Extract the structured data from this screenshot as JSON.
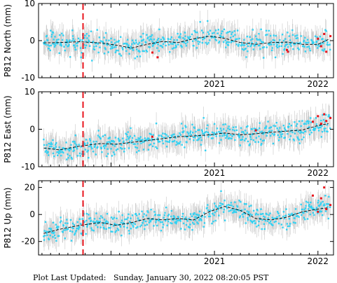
{
  "colors": {
    "data": "#33d1f2",
    "recent": "#e8141c",
    "errorbar": "#c8c8c8",
    "model": "#000000",
    "event": "#e8141c",
    "frame": "#000000"
  },
  "footer": {
    "label": "Plot Last Updated:",
    "timestamp": "Sunday, January 30, 2022 08:20:05 PST"
  },
  "chart_data": [
    {
      "type": "scatter",
      "ylabel": "P812 North (mm)",
      "xlim": [
        2019.3,
        2022.15
      ],
      "ylim": [
        -10,
        10
      ],
      "yticks": [
        -10,
        0,
        10
      ],
      "xticks": [
        {
          "value": 2021.0,
          "label": "2021"
        },
        {
          "value": 2022.0,
          "label": "2022"
        }
      ],
      "vline_x": 2019.73,
      "error_bar_mm": 3.0,
      "series": [
        {
          "role": "model",
          "x": [
            2019.35,
            2019.5,
            2019.7,
            2019.9,
            2020.05,
            2020.2,
            2020.35,
            2020.5,
            2020.65,
            2020.8,
            2020.95,
            2021.1,
            2021.25,
            2021.4,
            2021.55,
            2021.7,
            2021.85,
            2022.0,
            2022.1
          ],
          "y": [
            -0.6,
            -0.5,
            -0.3,
            -0.6,
            -1.2,
            -2.0,
            -1.0,
            -0.2,
            -0.5,
            0.5,
            1.2,
            0.6,
            -0.5,
            -1.0,
            -0.5,
            -0.4,
            -1.0,
            -1.0,
            0.3
          ]
        },
        {
          "role": "recent",
          "x": [
            2020.4,
            2020.45,
            2021.7,
            2021.71,
            2022.0,
            2022.03,
            2022.06,
            2022.08,
            2022.12
          ],
          "y": [
            -3.2,
            -4.5,
            -2.5,
            -3.0,
            0.5,
            -1.5,
            1.8,
            -3.0,
            1.2
          ]
        }
      ]
    },
    {
      "type": "scatter",
      "ylabel": "P812 East (mm)",
      "xlim": [
        2019.3,
        2022.15
      ],
      "ylim": [
        -10,
        10
      ],
      "yticks": [
        -10,
        0,
        10
      ],
      "xticks": [
        {
          "value": 2021.0,
          "label": "2021"
        },
        {
          "value": 2022.0,
          "label": "2022"
        }
      ],
      "vline_x": 2019.73,
      "error_bar_mm": 3.0,
      "series": [
        {
          "role": "model",
          "x": [
            2019.35,
            2019.5,
            2019.7,
            2019.9,
            2020.05,
            2020.2,
            2020.35,
            2020.5,
            2020.65,
            2020.8,
            2020.95,
            2021.1,
            2021.25,
            2021.4,
            2021.55,
            2021.7,
            2021.85,
            2022.0,
            2022.1
          ],
          "y": [
            -5.0,
            -5.5,
            -4.5,
            -3.8,
            -4.0,
            -3.5,
            -3.0,
            -2.5,
            -2.0,
            -1.8,
            -1.5,
            -1.0,
            -1.5,
            -1.2,
            -0.8,
            -0.5,
            -0.2,
            1.0,
            1.5
          ]
        },
        {
          "role": "recent",
          "x": [
            2020.4,
            2021.4,
            2021.95,
            2022.0,
            2022.03,
            2022.06,
            2022.08,
            2022.12
          ],
          "y": [
            -2.0,
            -0.3,
            2.0,
            3.5,
            1.5,
            4.0,
            2.2,
            3.0
          ]
        }
      ]
    },
    {
      "type": "scatter",
      "ylabel": "P812 Up (mm)",
      "xlim": [
        2019.3,
        2022.15
      ],
      "ylim": [
        -30,
        25
      ],
      "yticks": [
        -20,
        0,
        20
      ],
      "xticks": [
        {
          "value": 2021.0,
          "label": "2021"
        },
        {
          "value": 2022.0,
          "label": "2022"
        }
      ],
      "vline_x": 2019.73,
      "error_bar_mm": 8.0,
      "series": [
        {
          "role": "model",
          "x": [
            2019.35,
            2019.5,
            2019.7,
            2019.9,
            2020.05,
            2020.2,
            2020.35,
            2020.5,
            2020.65,
            2020.8,
            2020.95,
            2021.1,
            2021.25,
            2021.4,
            2021.55,
            2021.7,
            2021.85,
            2022.0,
            2022.1
          ],
          "y": [
            -14.0,
            -11.0,
            -8.0,
            -6.0,
            -8.0,
            -6.0,
            -3.0,
            -4.0,
            -3.0,
            -4.0,
            2.0,
            6.0,
            3.0,
            -3.0,
            -4.0,
            -2.0,
            2.0,
            4.0,
            5.0
          ]
        },
        {
          "role": "recent",
          "x": [
            2021.95,
            2022.0,
            2022.03,
            2022.06,
            2022.08,
            2022.12
          ],
          "y": [
            14.0,
            2.0,
            12.0,
            20.0,
            4.0,
            7.0
          ]
        }
      ]
    }
  ]
}
